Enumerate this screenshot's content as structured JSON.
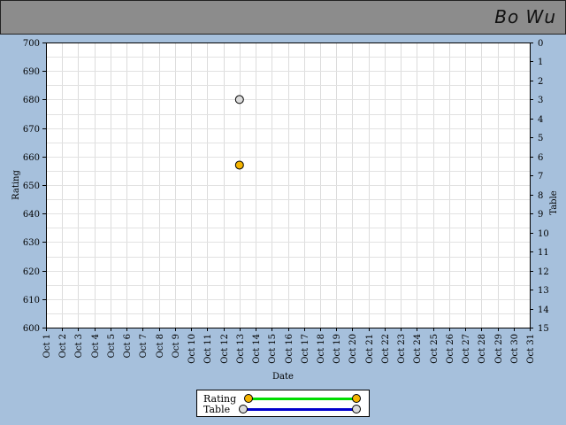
{
  "header": {
    "player_name": "Bo Wu"
  },
  "chart_data": {
    "type": "scatter",
    "xlabel": "Date",
    "ylabel_left": "Rating",
    "ylabel_right": "Table",
    "categories": [
      "Oct 1",
      "Oct 2",
      "Oct 3",
      "Oct 4",
      "Oct 5",
      "Oct 6",
      "Oct 7",
      "Oct 8",
      "Oct 9",
      "Oct 10",
      "Oct 11",
      "Oct 12",
      "Oct 13",
      "Oct 14",
      "Oct 15",
      "Oct 16",
      "Oct 17",
      "Oct 18",
      "Oct 19",
      "Oct 20",
      "Oct 21",
      "Oct 22",
      "Oct 23",
      "Oct 24",
      "Oct 25",
      "Oct 26",
      "Oct 27",
      "Oct 28",
      "Oct 29",
      "Oct 30",
      "Oct 31"
    ],
    "ylim_left": [
      600,
      700
    ],
    "yticks_left": [
      700,
      690,
      680,
      670,
      660,
      650,
      640,
      630,
      620,
      610,
      600
    ],
    "ylim_right": [
      0,
      15
    ],
    "yticks_right": [
      0,
      1,
      2,
      3,
      4,
      5,
      6,
      7,
      8,
      9,
      10,
      11,
      12,
      13,
      14,
      15
    ],
    "grid": true,
    "legend_position": "bottom-center",
    "series": [
      {
        "name": "Rating",
        "axis": "left",
        "x": [
          "Oct 13"
        ],
        "y": [
          657
        ],
        "marker_color": "#f5b400",
        "line_color": "#00dd00"
      },
      {
        "name": "Table",
        "axis": "right",
        "x": [
          "Oct 13"
        ],
        "y": [
          3
        ],
        "marker_color": "#dcdcdc",
        "line_color": "#0000cc"
      }
    ]
  }
}
